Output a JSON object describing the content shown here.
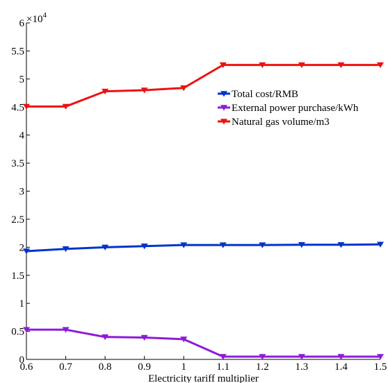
{
  "chart_data": {
    "type": "line",
    "title": "",
    "xlabel": "Electricity tariff multiplier",
    "ylabel": "",
    "y_multiplier_label": "×10",
    "y_multiplier_exp": "4",
    "x": [
      0.6,
      0.7,
      0.8,
      0.9,
      1.0,
      1.1,
      1.2,
      1.3,
      1.4,
      1.5
    ],
    "x_ticks": [
      "0.6",
      "0.7",
      "0.8",
      "0.9",
      "1",
      "1.1",
      "1.2",
      "1.3",
      "1.4",
      "1.5"
    ],
    "y_ticks": [
      "0",
      "0.5",
      "1",
      "1.5",
      "2",
      "2.5",
      "3",
      "3.5",
      "4",
      "4.5",
      "5",
      "5.5",
      "6"
    ],
    "xlim": [
      0.6,
      1.5
    ],
    "ylim": [
      0,
      6
    ],
    "grid": false,
    "legend_position": "center-right",
    "series": [
      {
        "name": "Total cost/RMB",
        "color": "#0033cc",
        "marker": "triangle-down",
        "values": [
          1.93,
          1.97,
          2.0,
          2.02,
          2.04,
          2.04,
          2.04,
          2.045,
          2.045,
          2.05
        ]
      },
      {
        "name": "External power purchase/kWh",
        "color": "#8c1cd8",
        "marker": "triangle-down",
        "values": [
          0.53,
          0.53,
          0.4,
          0.39,
          0.36,
          0.05,
          0.05,
          0.05,
          0.05,
          0.05
        ]
      },
      {
        "name": "Natural gas volume/m3",
        "color": "#ee1111",
        "marker": "triangle-down",
        "values": [
          4.51,
          4.51,
          4.78,
          4.8,
          4.84,
          5.25,
          5.25,
          5.25,
          5.25,
          5.25
        ]
      }
    ]
  }
}
